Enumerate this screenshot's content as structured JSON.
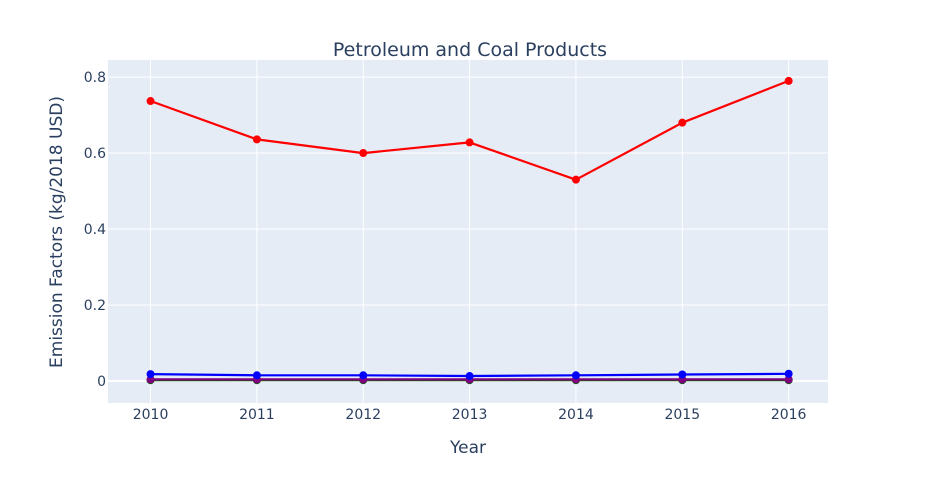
{
  "chart_data": {
    "type": "line",
    "title": "Petroleum and Coal Products",
    "xlabel": "Year",
    "ylabel": "Emission Factors (kg/2018 USD)",
    "x": [
      2010,
      2011,
      2012,
      2013,
      2014,
      2015,
      2016
    ],
    "x_ticks": [
      "2010",
      "2011",
      "2012",
      "2013",
      "2014",
      "2015",
      "2016"
    ],
    "xlim": [
      2009.6,
      2016.37
    ],
    "y_ticks": [
      "0",
      "0.2",
      "0.4",
      "0.6",
      "0.8"
    ],
    "y_tick_values": [
      0,
      0.2,
      0.4,
      0.6,
      0.8
    ],
    "ylim": [
      -0.058,
      0.845
    ],
    "grid": true,
    "legend": "none",
    "plot_background": "#e5ecf6",
    "series": [
      {
        "color": "#ff0000",
        "values": [
          0.737,
          0.636,
          0.6,
          0.628,
          0.53,
          0.68,
          0.79
        ]
      },
      {
        "color": "#0000ff",
        "values": [
          0.018,
          0.015,
          0.015,
          0.013,
          0.015,
          0.017,
          0.019
        ]
      },
      {
        "color": "#800080",
        "values": [
          0.004,
          0.004,
          0.004,
          0.004,
          0.004,
          0.004,
          0.004
        ]
      },
      {
        "color": "#006400",
        "values": [
          0.002,
          0.002,
          0.002,
          0.002,
          0.002,
          0.002,
          0.002
        ]
      }
    ]
  }
}
